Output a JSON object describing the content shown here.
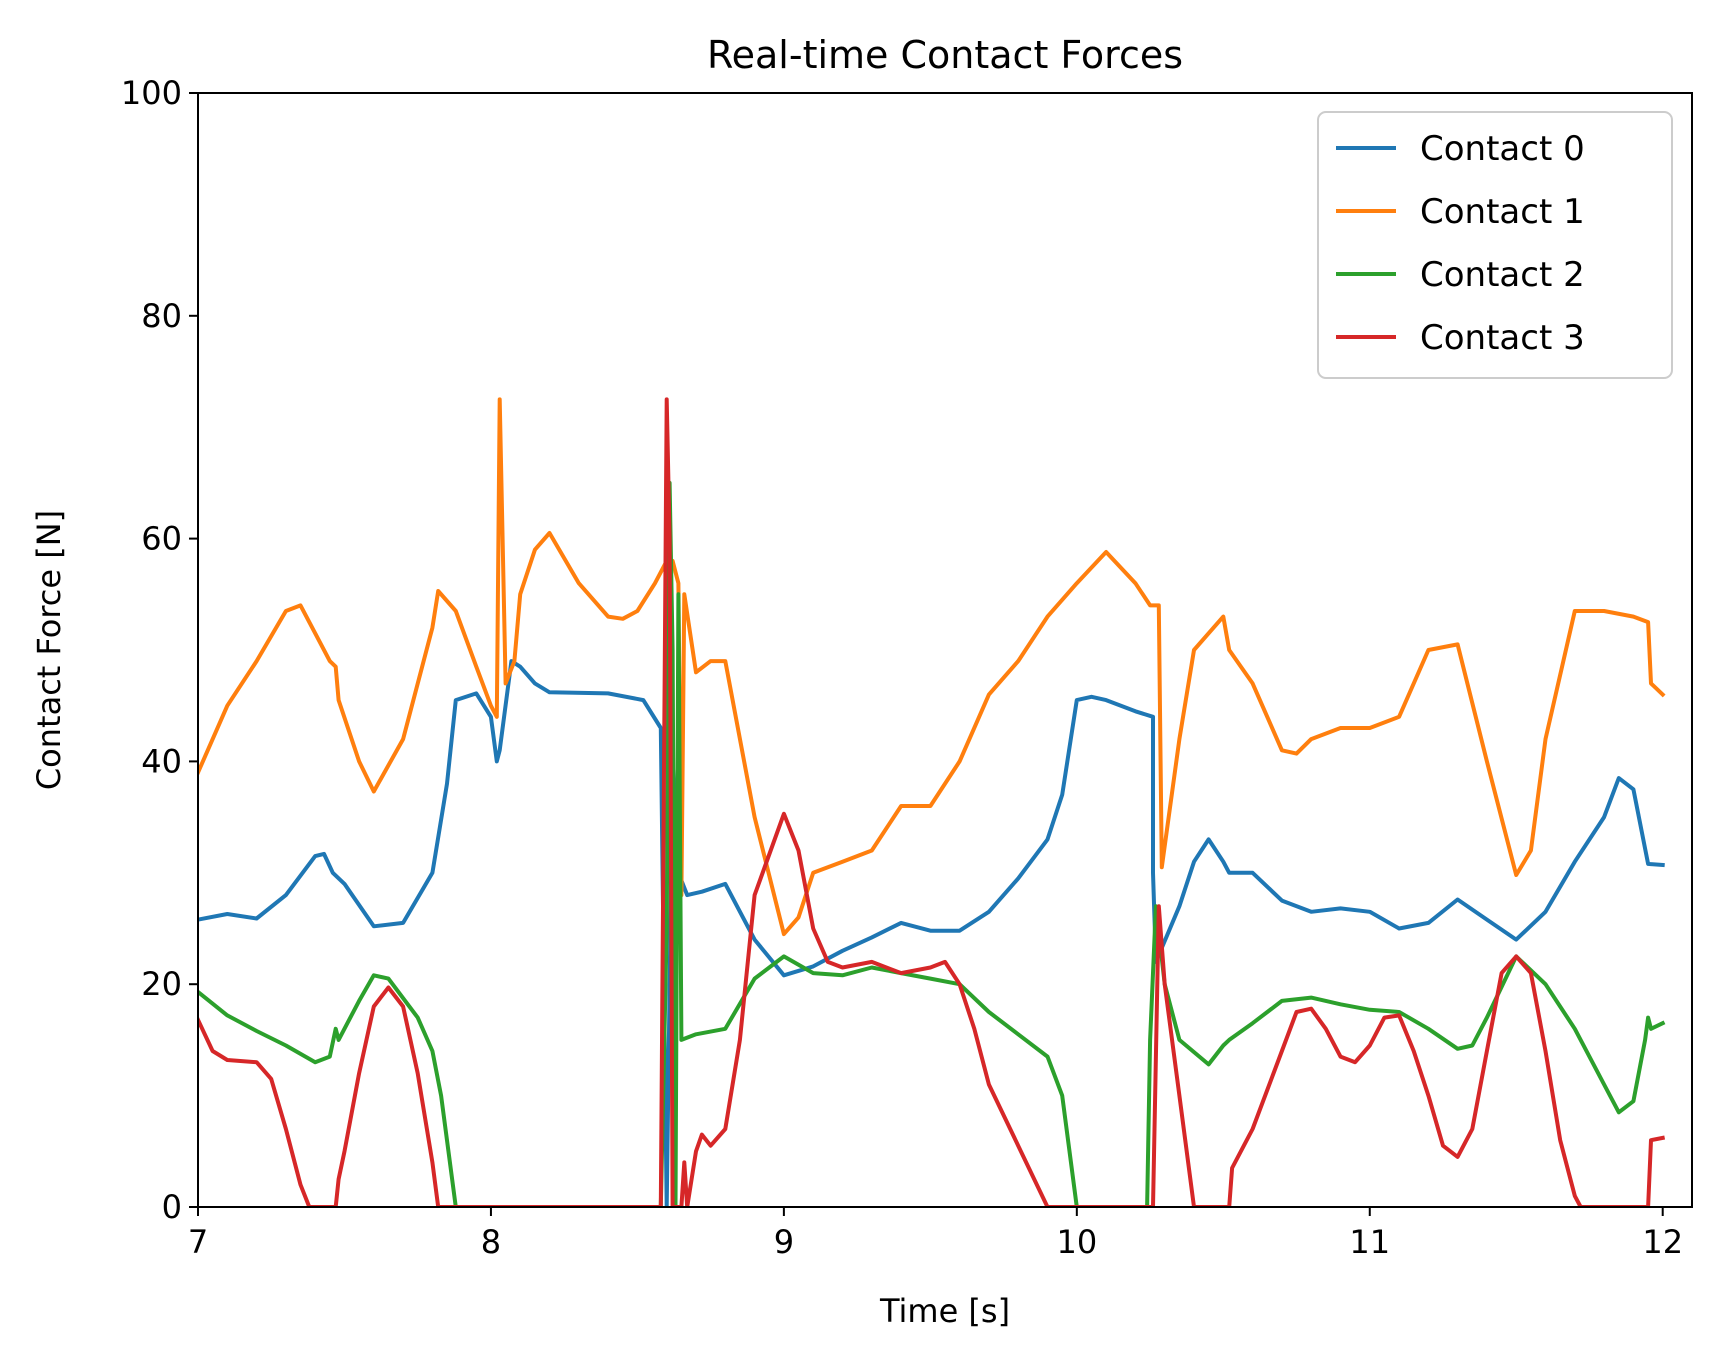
{
  "chart_data": {
    "type": "line",
    "title": "Real-time Contact Forces",
    "xlabel": "Time [s]",
    "ylabel": "Contact Force [N]",
    "xlim": [
      7,
      12.1
    ],
    "ylim": [
      0,
      100
    ],
    "xticks": [
      7,
      8,
      9,
      10,
      11,
      12
    ],
    "yticks": [
      0,
      20,
      40,
      60,
      80,
      100
    ],
    "grid": false,
    "legend_position": "top-right",
    "series": [
      {
        "name": "Contact 0",
        "color": "#1f77b4",
        "points": [
          [
            7.0,
            25.8
          ],
          [
            7.1,
            26.3
          ],
          [
            7.2,
            25.9
          ],
          [
            7.3,
            28.0
          ],
          [
            7.4,
            31.5
          ],
          [
            7.43,
            31.7
          ],
          [
            7.46,
            30.0
          ],
          [
            7.5,
            29.0
          ],
          [
            7.6,
            25.2
          ],
          [
            7.7,
            25.5
          ],
          [
            7.8,
            30.0
          ],
          [
            7.85,
            38.0
          ],
          [
            7.88,
            45.5
          ],
          [
            7.95,
            46.1
          ],
          [
            8.0,
            44.0
          ],
          [
            8.02,
            40.0
          ],
          [
            8.03,
            41.0
          ],
          [
            8.07,
            49.0
          ],
          [
            8.1,
            48.5
          ],
          [
            8.15,
            47.0
          ],
          [
            8.2,
            46.2
          ],
          [
            8.4,
            46.1
          ],
          [
            8.52,
            45.5
          ],
          [
            8.58,
            43.0
          ],
          [
            8.6,
            0.0
          ],
          [
            8.62,
            40.0
          ],
          [
            8.64,
            30.0
          ],
          [
            8.67,
            28.0
          ],
          [
            8.72,
            28.3
          ],
          [
            8.8,
            29.0
          ],
          [
            8.9,
            24.0
          ],
          [
            9.0,
            20.8
          ],
          [
            9.1,
            21.6
          ],
          [
            9.2,
            23.0
          ],
          [
            9.3,
            24.2
          ],
          [
            9.4,
            25.5
          ],
          [
            9.5,
            24.8
          ],
          [
            9.6,
            24.8
          ],
          [
            9.7,
            26.5
          ],
          [
            9.8,
            29.5
          ],
          [
            9.9,
            33.0
          ],
          [
            9.95,
            37.0
          ],
          [
            10.0,
            45.5
          ],
          [
            10.05,
            45.8
          ],
          [
            10.1,
            45.5
          ],
          [
            10.2,
            44.5
          ],
          [
            10.26,
            44.0
          ],
          [
            10.26,
            30.0
          ],
          [
            10.27,
            22.0
          ],
          [
            10.35,
            27.0
          ],
          [
            10.4,
            31.0
          ],
          [
            10.45,
            33.0
          ],
          [
            10.5,
            31.0
          ],
          [
            10.52,
            30.0
          ],
          [
            10.6,
            30.0
          ],
          [
            10.7,
            27.5
          ],
          [
            10.8,
            26.5
          ],
          [
            10.9,
            26.8
          ],
          [
            11.0,
            26.5
          ],
          [
            11.1,
            25.0
          ],
          [
            11.2,
            25.5
          ],
          [
            11.3,
            27.6
          ],
          [
            11.4,
            25.8
          ],
          [
            11.5,
            24.0
          ],
          [
            11.6,
            26.5
          ],
          [
            11.7,
            31.0
          ],
          [
            11.8,
            35.0
          ],
          [
            11.85,
            38.5
          ],
          [
            11.9,
            37.5
          ],
          [
            11.95,
            30.8
          ],
          [
            12.0,
            30.7
          ]
        ]
      },
      {
        "name": "Contact 1",
        "color": "#ff7f0e",
        "points": [
          [
            7.0,
            39.0
          ],
          [
            7.1,
            45.0
          ],
          [
            7.2,
            49.0
          ],
          [
            7.3,
            53.5
          ],
          [
            7.35,
            54.0
          ],
          [
            7.4,
            51.5
          ],
          [
            7.45,
            49.0
          ],
          [
            7.47,
            48.5
          ],
          [
            7.48,
            45.5
          ],
          [
            7.55,
            40.0
          ],
          [
            7.6,
            37.3
          ],
          [
            7.7,
            42.0
          ],
          [
            7.8,
            52.0
          ],
          [
            7.82,
            55.3
          ],
          [
            7.88,
            53.5
          ],
          [
            7.95,
            48.5
          ],
          [
            8.0,
            45.0
          ],
          [
            8.02,
            44.0
          ],
          [
            8.03,
            72.5
          ],
          [
            8.05,
            47.0
          ],
          [
            8.08,
            49.0
          ],
          [
            8.1,
            55.0
          ],
          [
            8.15,
            59.0
          ],
          [
            8.2,
            60.5
          ],
          [
            8.3,
            56.0
          ],
          [
            8.4,
            53.0
          ],
          [
            8.45,
            52.8
          ],
          [
            8.5,
            53.5
          ],
          [
            8.56,
            56.0
          ],
          [
            8.6,
            58.0
          ],
          [
            8.62,
            58.0
          ],
          [
            8.64,
            56.0
          ],
          [
            8.65,
            28.0
          ],
          [
            8.66,
            55.0
          ],
          [
            8.7,
            48.0
          ],
          [
            8.75,
            49.0
          ],
          [
            8.8,
            49.0
          ],
          [
            8.9,
            35.0
          ],
          [
            9.0,
            24.5
          ],
          [
            9.05,
            26.0
          ],
          [
            9.1,
            30.0
          ],
          [
            9.2,
            31.0
          ],
          [
            9.3,
            32.0
          ],
          [
            9.4,
            36.0
          ],
          [
            9.5,
            36.0
          ],
          [
            9.6,
            40.0
          ],
          [
            9.7,
            46.0
          ],
          [
            9.8,
            49.0
          ],
          [
            9.9,
            53.0
          ],
          [
            10.0,
            56.0
          ],
          [
            10.1,
            58.8
          ],
          [
            10.2,
            56.0
          ],
          [
            10.25,
            54.0
          ],
          [
            10.28,
            54.0
          ],
          [
            10.29,
            30.5
          ],
          [
            10.35,
            42.0
          ],
          [
            10.4,
            50.0
          ],
          [
            10.45,
            51.5
          ],
          [
            10.5,
            53.0
          ],
          [
            10.52,
            50.0
          ],
          [
            10.6,
            47.0
          ],
          [
            10.7,
            41.0
          ],
          [
            10.75,
            40.7
          ],
          [
            10.8,
            42.0
          ],
          [
            10.9,
            43.0
          ],
          [
            11.0,
            43.0
          ],
          [
            11.1,
            44.0
          ],
          [
            11.2,
            50.0
          ],
          [
            11.3,
            50.5
          ],
          [
            11.4,
            40.0
          ],
          [
            11.5,
            29.8
          ],
          [
            11.55,
            32.0
          ],
          [
            11.6,
            42.0
          ],
          [
            11.7,
            53.5
          ],
          [
            11.8,
            53.5
          ],
          [
            11.9,
            53.0
          ],
          [
            11.95,
            52.5
          ],
          [
            11.96,
            47.0
          ],
          [
            12.0,
            46.0
          ]
        ]
      },
      {
        "name": "Contact 2",
        "color": "#2ca02c",
        "points": [
          [
            7.0,
            19.3
          ],
          [
            7.1,
            17.2
          ],
          [
            7.2,
            15.8
          ],
          [
            7.3,
            14.5
          ],
          [
            7.4,
            13.0
          ],
          [
            7.45,
            13.5
          ],
          [
            7.47,
            16.0
          ],
          [
            7.48,
            15.0
          ],
          [
            7.55,
            18.5
          ],
          [
            7.6,
            20.8
          ],
          [
            7.65,
            20.5
          ],
          [
            7.75,
            17.0
          ],
          [
            7.8,
            14.0
          ],
          [
            7.83,
            10.0
          ],
          [
            7.88,
            0.0
          ],
          [
            8.58,
            0.0
          ],
          [
            8.6,
            25.0
          ],
          [
            8.61,
            65.0
          ],
          [
            8.62,
            50.0
          ],
          [
            8.63,
            0.0
          ],
          [
            8.64,
            55.0
          ],
          [
            8.65,
            15.0
          ],
          [
            8.7,
            15.5
          ],
          [
            8.8,
            16.0
          ],
          [
            8.9,
            20.5
          ],
          [
            9.0,
            22.5
          ],
          [
            9.1,
            21.0
          ],
          [
            9.2,
            20.8
          ],
          [
            9.3,
            21.5
          ],
          [
            9.4,
            21.0
          ],
          [
            9.5,
            20.5
          ],
          [
            9.6,
            20.0
          ],
          [
            9.7,
            17.5
          ],
          [
            9.8,
            15.5
          ],
          [
            9.9,
            13.5
          ],
          [
            9.95,
            10.0
          ],
          [
            10.0,
            0.0
          ],
          [
            10.24,
            0.0
          ],
          [
            10.25,
            15.0
          ],
          [
            10.27,
            27.0
          ],
          [
            10.3,
            20.0
          ],
          [
            10.35,
            15.0
          ],
          [
            10.45,
            12.8
          ],
          [
            10.5,
            14.5
          ],
          [
            10.52,
            15.0
          ],
          [
            10.6,
            16.5
          ],
          [
            10.7,
            18.5
          ],
          [
            10.8,
            18.8
          ],
          [
            10.9,
            18.2
          ],
          [
            11.0,
            17.7
          ],
          [
            11.1,
            17.5
          ],
          [
            11.2,
            16.0
          ],
          [
            11.3,
            14.2
          ],
          [
            11.35,
            14.5
          ],
          [
            11.4,
            17.0
          ],
          [
            11.5,
            22.5
          ],
          [
            11.6,
            20.0
          ],
          [
            11.7,
            16.0
          ],
          [
            11.8,
            11.0
          ],
          [
            11.85,
            8.5
          ],
          [
            11.9,
            9.5
          ],
          [
            11.94,
            15.0
          ],
          [
            11.95,
            17.0
          ],
          [
            11.96,
            16.0
          ],
          [
            12.0,
            16.5
          ]
        ]
      },
      {
        "name": "Contact 3",
        "color": "#d62728",
        "points": [
          [
            7.0,
            16.8
          ],
          [
            7.05,
            14.0
          ],
          [
            7.1,
            13.2
          ],
          [
            7.2,
            13.0
          ],
          [
            7.25,
            11.5
          ],
          [
            7.3,
            7.0
          ],
          [
            7.35,
            2.0
          ],
          [
            7.38,
            0.0
          ],
          [
            7.47,
            0.0
          ],
          [
            7.48,
            2.5
          ],
          [
            7.5,
            5.0
          ],
          [
            7.55,
            12.0
          ],
          [
            7.6,
            18.0
          ],
          [
            7.65,
            19.7
          ],
          [
            7.7,
            18.0
          ],
          [
            7.75,
            12.0
          ],
          [
            7.8,
            4.0
          ],
          [
            7.82,
            0.0
          ],
          [
            8.58,
            0.0
          ],
          [
            8.6,
            72.5
          ],
          [
            8.61,
            60.0
          ],
          [
            8.62,
            0.0
          ],
          [
            8.65,
            0.0
          ],
          [
            8.66,
            4.0
          ],
          [
            8.67,
            0.0
          ],
          [
            8.7,
            5.0
          ],
          [
            8.72,
            6.5
          ],
          [
            8.75,
            5.5
          ],
          [
            8.8,
            7.0
          ],
          [
            8.85,
            15.0
          ],
          [
            8.9,
            28.0
          ],
          [
            9.0,
            35.3
          ],
          [
            9.05,
            32.0
          ],
          [
            9.1,
            25.0
          ],
          [
            9.15,
            22.0
          ],
          [
            9.2,
            21.5
          ],
          [
            9.3,
            22.0
          ],
          [
            9.4,
            21.0
          ],
          [
            9.5,
            21.5
          ],
          [
            9.55,
            22.0
          ],
          [
            9.6,
            20.0
          ],
          [
            9.65,
            16.0
          ],
          [
            9.7,
            11.0
          ],
          [
            9.8,
            5.5
          ],
          [
            9.9,
            0.0
          ],
          [
            10.26,
            0.0
          ],
          [
            10.28,
            27.0
          ],
          [
            10.3,
            20.0
          ],
          [
            10.35,
            10.0
          ],
          [
            10.4,
            0.0
          ],
          [
            10.52,
            0.0
          ],
          [
            10.53,
            3.5
          ],
          [
            10.6,
            7.0
          ],
          [
            10.7,
            14.0
          ],
          [
            10.75,
            17.5
          ],
          [
            10.8,
            17.8
          ],
          [
            10.85,
            16.0
          ],
          [
            10.9,
            13.5
          ],
          [
            10.95,
            13.0
          ],
          [
            11.0,
            14.5
          ],
          [
            11.05,
            17.0
          ],
          [
            11.1,
            17.2
          ],
          [
            11.15,
            14.0
          ],
          [
            11.2,
            10.0
          ],
          [
            11.25,
            5.5
          ],
          [
            11.3,
            4.5
          ],
          [
            11.35,
            7.0
          ],
          [
            11.4,
            14.0
          ],
          [
            11.45,
            21.0
          ],
          [
            11.5,
            22.5
          ],
          [
            11.55,
            21.0
          ],
          [
            11.6,
            14.0
          ],
          [
            11.65,
            6.0
          ],
          [
            11.7,
            1.0
          ],
          [
            11.72,
            0.0
          ],
          [
            11.95,
            0.0
          ],
          [
            11.96,
            6.0
          ],
          [
            12.0,
            6.2
          ]
        ]
      }
    ]
  }
}
